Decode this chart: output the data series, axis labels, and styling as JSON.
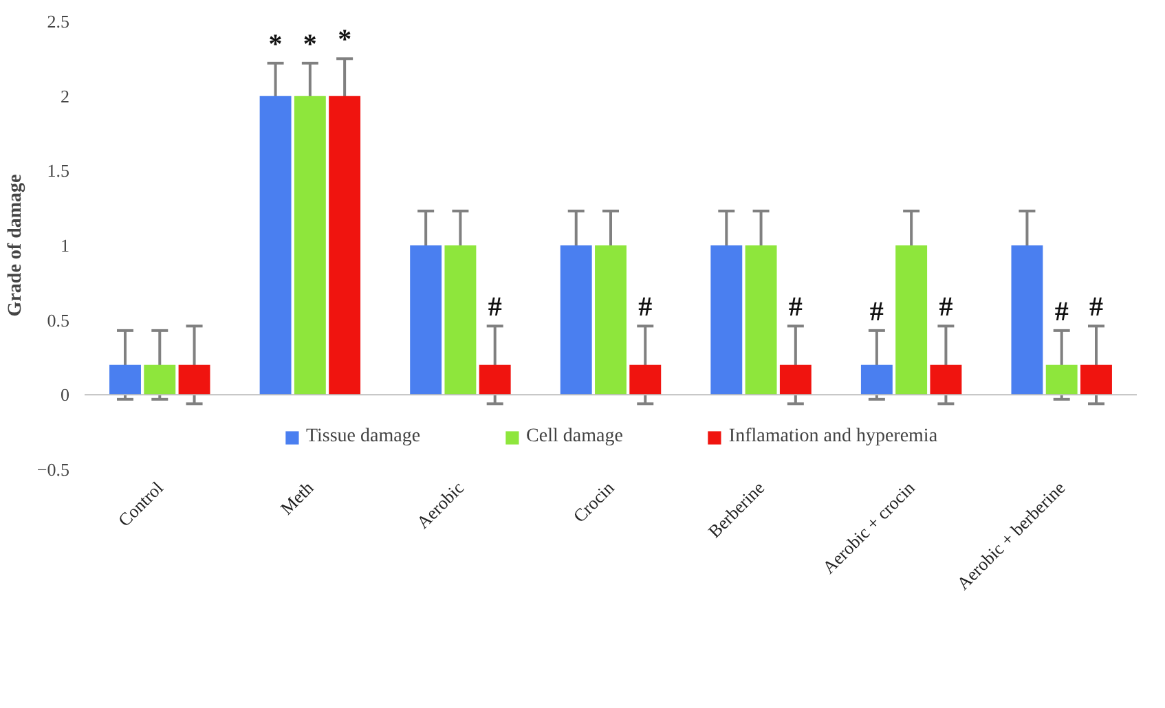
{
  "chart_data": {
    "type": "bar",
    "ylabel": "Grade of damage",
    "categories": [
      "Control",
      "Meth",
      "Aerobic",
      "Crocin",
      "Berberine",
      "Aerobic + crocin",
      "Aerobic + berberine"
    ],
    "ylim": [
      -0.5,
      2.5
    ],
    "yticks": [
      -0.5,
      0,
      0.5,
      1,
      1.5,
      2,
      2.5
    ],
    "grid": false,
    "ref_lines": [
      {
        "axis": "y",
        "value": 0,
        "color": "#bfbfbf"
      }
    ],
    "legend": "bottom",
    "series": [
      {
        "name": "Tissue damage",
        "color": "#4a7ff0",
        "values": [
          0.2,
          2,
          1,
          1,
          1,
          0.2,
          1
        ],
        "errors": [
          0.23,
          0.22,
          0.23,
          0.23,
          0.23,
          0.23,
          0.23
        ],
        "value_labels": [
          null,
          "*",
          null,
          null,
          null,
          "#",
          null
        ]
      },
      {
        "name": "Cell damage",
        "color": "#8ee63c",
        "values": [
          0.2,
          2,
          1,
          1,
          1,
          1,
          0.2
        ],
        "errors": [
          0.23,
          0.22,
          0.23,
          0.23,
          0.23,
          0.23,
          0.23
        ],
        "value_labels": [
          null,
          "*",
          null,
          null,
          null,
          null,
          "#"
        ]
      },
      {
        "name": "Inflamation and hyperemia",
        "color": "#f0140f",
        "values": [
          0.2,
          2,
          0.2,
          0.2,
          0.2,
          0.2,
          0.2
        ],
        "errors": [
          0.26,
          0.25,
          0.26,
          0.26,
          0.26,
          0.26,
          0.26
        ],
        "value_labels": [
          null,
          "*",
          "#",
          "#",
          "#",
          "#",
          "#"
        ]
      }
    ]
  }
}
